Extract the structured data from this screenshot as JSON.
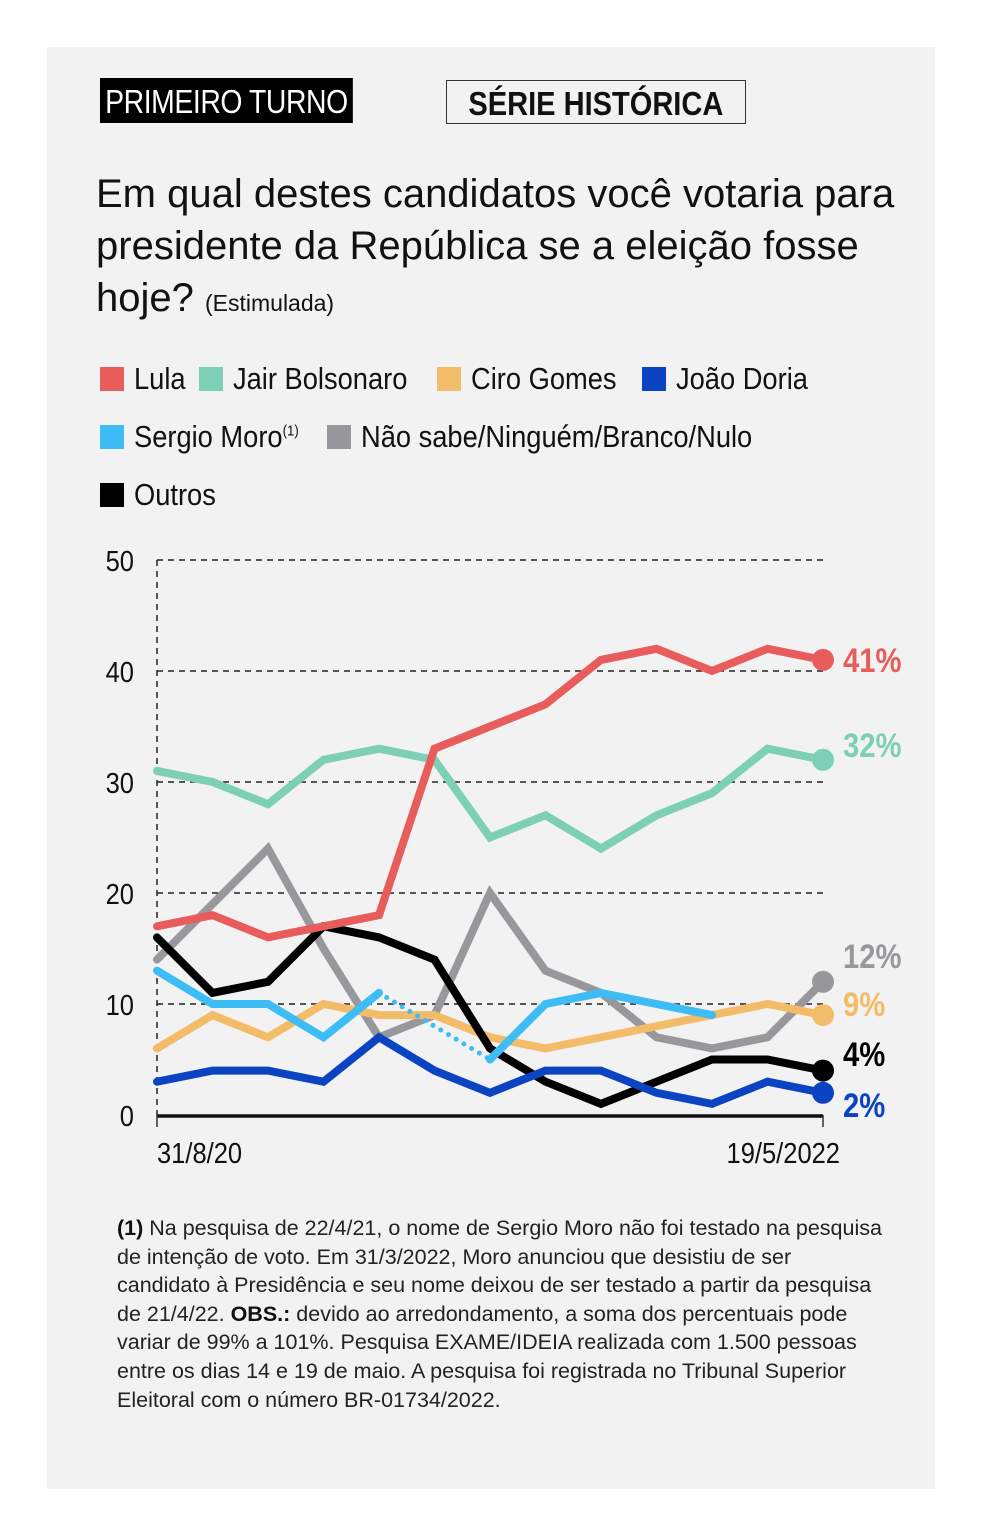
{
  "header": {
    "tag_primary": "PRIMEIRO TURNO",
    "tag_secondary": "SÉRIE HISTÓRICA"
  },
  "title": {
    "question": "Em qual destes candidatos você votaria para presidente da República se a eleição fosse hoje?",
    "qualifier": "(Estimulada)"
  },
  "legend": [
    {
      "key": "lula",
      "label": "Lula",
      "sup": ""
    },
    {
      "key": "bolsonaro",
      "label": "Jair Bolsonaro",
      "sup": ""
    },
    {
      "key": "ciro",
      "label": "Ciro Gomes",
      "sup": ""
    },
    {
      "key": "doria",
      "label": "João Doria",
      "sup": ""
    },
    {
      "key": "moro",
      "label": "Sergio Moro",
      "sup": "(1)"
    },
    {
      "key": "naosabe",
      "label": "Não sabe/Ninguém/Branco/Nulo",
      "sup": ""
    },
    {
      "key": "outros",
      "label": "Outros",
      "sup": ""
    }
  ],
  "chart_data": {
    "type": "line",
    "title": "Em qual destes candidatos você votaria para presidente da República se a eleição fosse hoje? (Estimulada)",
    "xlabel": "",
    "ylabel": "",
    "x_tick_labels": [
      "31/8/20",
      "19/5/2022"
    ],
    "x_count": 13,
    "ylim": [
      0,
      50
    ],
    "y_ticks": [
      0,
      10,
      20,
      30,
      40,
      50
    ],
    "grid": true,
    "series": [
      {
        "key": "lula",
        "name": "Lula",
        "color": "#e85c5c",
        "values": [
          17,
          18,
          16,
          17,
          18,
          33,
          35,
          37,
          41,
          42,
          40,
          42,
          41
        ],
        "end_label": "41%"
      },
      {
        "key": "bolsonaro",
        "name": "Jair Bolsonaro",
        "color": "#7dcfb6",
        "values": [
          31,
          30,
          28,
          32,
          33,
          32,
          25,
          27,
          24,
          27,
          29,
          33,
          32
        ],
        "end_label": "32%"
      },
      {
        "key": "naosabe",
        "name": "Não sabe/Ninguém/Branco/Nulo",
        "color": "#98989c",
        "values": [
          14,
          19,
          24,
          15,
          7,
          9,
          20,
          13,
          11,
          7,
          6,
          7,
          12
        ],
        "end_label": "12%"
      },
      {
        "key": "ciro",
        "name": "Ciro Gomes",
        "color": "#f3bc68",
        "values": [
          6,
          9,
          7,
          10,
          9,
          9,
          7,
          6,
          7,
          8,
          9,
          10,
          9
        ],
        "end_label": "9%"
      },
      {
        "key": "outros",
        "name": "Outros",
        "color": "#000000",
        "values": [
          16,
          11,
          12,
          17,
          16,
          14,
          6,
          3,
          1,
          3,
          5,
          5,
          4
        ],
        "end_label": "4%"
      },
      {
        "key": "doria",
        "name": "João Doria",
        "color": "#0a44c2",
        "values": [
          3,
          4,
          4,
          3,
          7,
          4,
          2,
          4,
          4,
          2,
          1,
          3,
          2
        ],
        "end_label": "2%"
      },
      {
        "key": "moro",
        "name": "Sergio Moro",
        "color": "#3dbcf5",
        "values": [
          13,
          10,
          10,
          7,
          11,
          null,
          5,
          10,
          11,
          10,
          9,
          null,
          null
        ],
        "end_label": "",
        "gap_style": "dotted"
      }
    ]
  },
  "footnote": {
    "marker": "(1)",
    "text1": " Na pesquisa de 22/4/21, o nome de Sergio Moro não foi testado na pesquisa de intenção de voto. Em 31/3/2022, Moro anunciou que desistiu de ser candidato à Presidência e seu nome deixou de ser testado a partir da pesquisa de 21/4/22. ",
    "obs_label": "OBS.:",
    "text2": " devido ao arredondamento, a soma dos percentuais pode variar de 99% a 101%. Pesquisa EXAME/IDEIA realizada com 1.500 pessoas entre os dias 14 e 19 de maio. A pesquisa foi registrada no Tribunal Superior Eleitoral com o número BR-01734/2022."
  }
}
